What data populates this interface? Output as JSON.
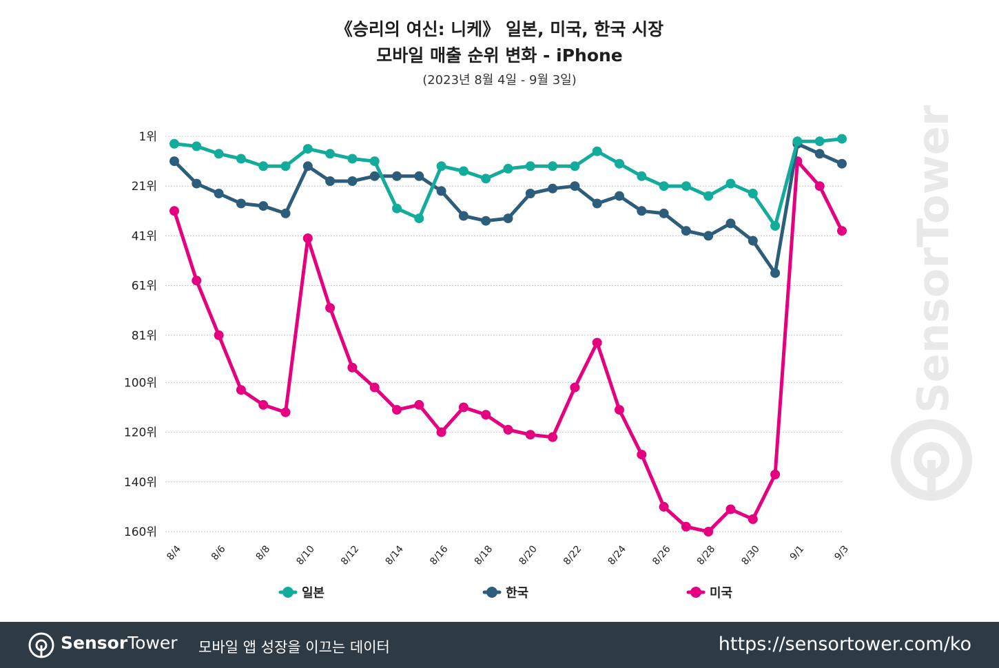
{
  "title": {
    "line1": "《승리의 여신: 니케》 일본, 미국, 한국 시장",
    "line2": "모바일 매출 순위 변화 - iPhone",
    "subtitle": "(2023년 8월 4일 - 9월 3일)"
  },
  "chart_data": {
    "type": "line",
    "title": "《승리의 여신: 니케》 일본, 미국, 한국 시장 모바일 매출 순위 변화 - iPhone",
    "subtitle": "(2023년 8월 4일 - 9월 3일)",
    "xlabel": "",
    "ylabel": "",
    "y_inverted": true,
    "ylim": [
      1,
      160
    ],
    "y_ticks": [
      {
        "value": 1,
        "label": "1위"
      },
      {
        "value": 21,
        "label": "21위"
      },
      {
        "value": 41,
        "label": "41위"
      },
      {
        "value": 61,
        "label": "61위"
      },
      {
        "value": 81,
        "label": "81위"
      },
      {
        "value": 100,
        "label": "100위"
      },
      {
        "value": 120,
        "label": "120위"
      },
      {
        "value": 140,
        "label": "140위"
      },
      {
        "value": 160,
        "label": "160위"
      }
    ],
    "x": [
      "8/4",
      "8/5",
      "8/6",
      "8/7",
      "8/8",
      "8/9",
      "8/10",
      "8/11",
      "8/12",
      "8/13",
      "8/14",
      "8/15",
      "8/16",
      "8/17",
      "8/18",
      "8/19",
      "8/20",
      "8/21",
      "8/22",
      "8/23",
      "8/24",
      "8/25",
      "8/26",
      "8/27",
      "8/28",
      "8/29",
      "8/30",
      "8/31",
      "9/1",
      "9/2",
      "9/3"
    ],
    "x_tick_labels": [
      "8/4",
      "8/6",
      "8/8",
      "8/10",
      "8/12",
      "8/14",
      "8/16",
      "8/18",
      "8/20",
      "8/22",
      "8/24",
      "8/26",
      "8/28",
      "8/30",
      "9/1",
      "9/3"
    ],
    "grid": true,
    "legend_position": "bottom",
    "series": [
      {
        "name": "일본",
        "color": "#12ab9c",
        "values": [
          4,
          5,
          8,
          10,
          13,
          13,
          6,
          8,
          10,
          11,
          30,
          34,
          13,
          15,
          18,
          14,
          13,
          13,
          13,
          7,
          12,
          17,
          21,
          21,
          25,
          20,
          24,
          37,
          3,
          3,
          2
        ]
      },
      {
        "name": "한국",
        "color": "#2c5d7a",
        "values": [
          11,
          20,
          24,
          28,
          29,
          32,
          13,
          19,
          19,
          17,
          17,
          17,
          23,
          33,
          35,
          34,
          24,
          22,
          21,
          28,
          25,
          31,
          32,
          39,
          41,
          36,
          43,
          56,
          4,
          8,
          12
        ]
      },
      {
        "name": "미국",
        "color": "#e4007f",
        "values": [
          31,
          59,
          81,
          103,
          109,
          112,
          42,
          70,
          94,
          102,
          111,
          109,
          120,
          110,
          113,
          119,
          121,
          122,
          102,
          84,
          111,
          129,
          150,
          158,
          160,
          151,
          155,
          137,
          11,
          21,
          39
        ]
      }
    ]
  },
  "watermark": "SensorTower",
  "footer": {
    "brand_bold": "Sensor",
    "brand_light": "Tower",
    "tagline": "모바일 앱 성장을 이끄는 데이터",
    "url": "https://sensortower.com/ko"
  }
}
